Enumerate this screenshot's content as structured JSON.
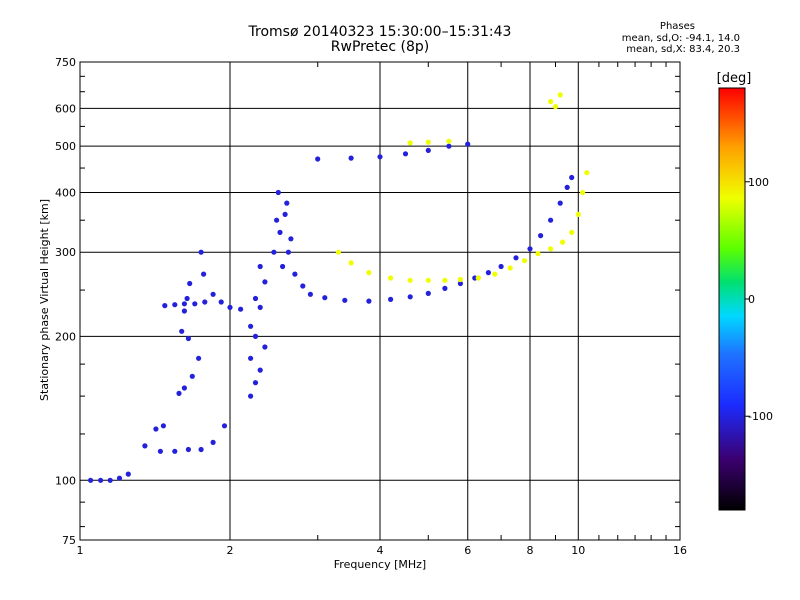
{
  "header": {
    "title": "Tromsø 20140323 15:30:00–15:31:43",
    "subtitle": "RwPretec (8p)",
    "phase_heading": "Phases",
    "phase_o": "mean, sd,O: -94.1, 14.0",
    "phase_x": "mean, sd,X: 83.4, 20.3"
  },
  "colorbar": {
    "unit": "[deg]",
    "ticks": [
      {
        "value": 100,
        "label": "100"
      },
      {
        "value": 0,
        "label": "0"
      },
      {
        "value": -100,
        "label": "-100"
      }
    ],
    "range": [
      -180,
      180
    ]
  },
  "chart_data": {
    "type": "scatter",
    "title": "Tromsø 20140323 15:30:00–15:31:43",
    "subtitle": "RwPretec (8p)",
    "xlabel": "Frequency [MHz]",
    "ylabel": "Stationary phase Virtual Height [km]",
    "x_scale": "log",
    "y_scale": "log",
    "xlim": [
      1,
      16
    ],
    "ylim": [
      75,
      750
    ],
    "x_ticks": [
      {
        "value": 1,
        "label": "1"
      },
      {
        "value": 2,
        "label": "2"
      },
      {
        "value": 4,
        "label": "4"
      },
      {
        "value": 6,
        "label": "6"
      },
      {
        "value": 8,
        "label": "8"
      },
      {
        "value": 10,
        "label": "10"
      },
      {
        "value": 16,
        "label": "16"
      }
    ],
    "y_ticks": [
      {
        "value": 75,
        "label": "75"
      },
      {
        "value": 100,
        "label": "100"
      },
      {
        "value": 200,
        "label": "200"
      },
      {
        "value": 300,
        "label": "300"
      },
      {
        "value": 400,
        "label": "400"
      },
      {
        "value": 500,
        "label": "500"
      },
      {
        "value": 600,
        "label": "600"
      },
      {
        "value": 750,
        "label": "750"
      }
    ],
    "grid": true,
    "color_by": "phase",
    "series": [
      {
        "mode": "O",
        "phase": -110,
        "points": [
          [
            1.05,
            100
          ],
          [
            1.1,
            100
          ],
          [
            1.15,
            100
          ],
          [
            1.2,
            101
          ],
          [
            1.25,
            103
          ],
          [
            1.35,
            118
          ],
          [
            1.45,
            115
          ],
          [
            1.55,
            115
          ],
          [
            1.65,
            116
          ],
          [
            1.75,
            116
          ],
          [
            1.85,
            120
          ],
          [
            1.95,
            130
          ],
          [
            1.42,
            128
          ],
          [
            1.47,
            130
          ],
          [
            1.48,
            232
          ],
          [
            1.55,
            233
          ],
          [
            1.62,
            234
          ],
          [
            1.7,
            234
          ],
          [
            1.78,
            236
          ],
          [
            1.75,
            300
          ],
          [
            1.77,
            270
          ],
          [
            1.85,
            245
          ],
          [
            1.92,
            236
          ],
          [
            2.0,
            230
          ],
          [
            2.1,
            228
          ],
          [
            2.2,
            150
          ],
          [
            2.2,
            180
          ],
          [
            2.2,
            210
          ],
          [
            2.25,
            160
          ],
          [
            2.25,
            200
          ],
          [
            2.25,
            240
          ],
          [
            2.3,
            170
          ],
          [
            2.3,
            230
          ],
          [
            2.3,
            280
          ],
          [
            2.35,
            190
          ],
          [
            2.35,
            260
          ],
          [
            2.45,
            300
          ],
          [
            2.48,
            350
          ],
          [
            2.5,
            400
          ],
          [
            2.52,
            330
          ],
          [
            2.55,
            280
          ],
          [
            2.58,
            360
          ],
          [
            2.6,
            380
          ],
          [
            2.62,
            300
          ],
          [
            2.65,
            320
          ],
          [
            2.7,
            270
          ],
          [
            2.8,
            255
          ],
          [
            2.9,
            245
          ],
          [
            3.1,
            241
          ],
          [
            3.4,
            238
          ],
          [
            3.8,
            237
          ],
          [
            4.2,
            239
          ],
          [
            4.6,
            242
          ],
          [
            5.0,
            246
          ],
          [
            5.4,
            252
          ],
          [
            5.8,
            258
          ],
          [
            6.2,
            265
          ],
          [
            6.6,
            272
          ],
          [
            7.0,
            280
          ],
          [
            7.5,
            292
          ],
          [
            8.0,
            305
          ],
          [
            8.4,
            325
          ],
          [
            8.8,
            350
          ],
          [
            9.2,
            380
          ],
          [
            9.5,
            410
          ],
          [
            9.7,
            430
          ],
          [
            3.0,
            470
          ],
          [
            3.5,
            472
          ],
          [
            4.0,
            475
          ],
          [
            4.5,
            482
          ],
          [
            5.0,
            490
          ],
          [
            5.5,
            500
          ],
          [
            6.0,
            505
          ],
          [
            1.58,
            152
          ],
          [
            1.62,
            156
          ],
          [
            1.68,
            165
          ],
          [
            1.73,
            180
          ],
          [
            1.65,
            198
          ],
          [
            1.6,
            205
          ],
          [
            1.62,
            226
          ],
          [
            1.64,
            240
          ],
          [
            1.66,
            258
          ]
        ]
      },
      {
        "mode": "X",
        "phase": 85,
        "points": [
          [
            3.3,
            300
          ],
          [
            3.5,
            285
          ],
          [
            3.8,
            272
          ],
          [
            4.2,
            265
          ],
          [
            4.6,
            262
          ],
          [
            5.0,
            262
          ],
          [
            5.4,
            262
          ],
          [
            5.8,
            263
          ],
          [
            6.3,
            265
          ],
          [
            6.8,
            270
          ],
          [
            7.3,
            278
          ],
          [
            7.8,
            288
          ],
          [
            8.3,
            298
          ],
          [
            8.8,
            305
          ],
          [
            9.3,
            315
          ],
          [
            9.7,
            330
          ],
          [
            10.0,
            360
          ],
          [
            10.2,
            400
          ],
          [
            10.4,
            440
          ],
          [
            8.8,
            620
          ],
          [
            9.2,
            640
          ],
          [
            9.0,
            605
          ],
          [
            4.6,
            508
          ],
          [
            5.0,
            510
          ],
          [
            5.5,
            512
          ]
        ]
      }
    ]
  }
}
